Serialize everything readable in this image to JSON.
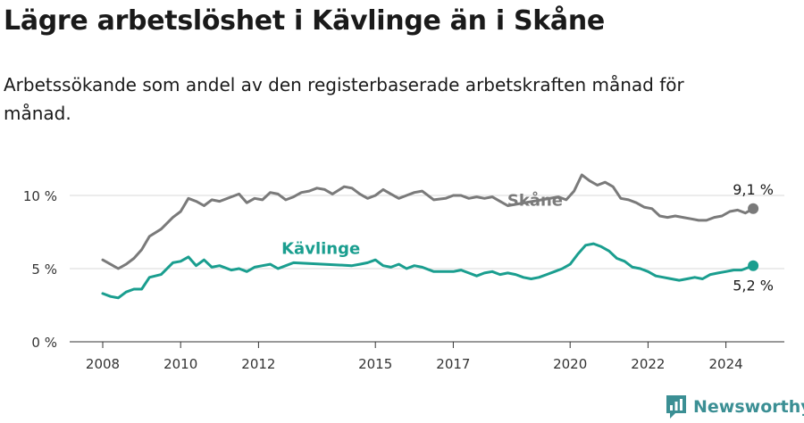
{
  "title": "Lägre arbetslöshet i Kävlinge än i Skåne",
  "subtitle": "Arbetssökande som andel av den registerbaserade arbetskraften månad för månad.",
  "brand": {
    "name": "Newsworthy",
    "color": "#3b8f94"
  },
  "chart_data": {
    "type": "line",
    "title": "Lägre arbetslöshet i Kävlinge än i Skåne",
    "xlabel": "",
    "ylabel": "",
    "xlim": [
      2007.3,
      2025.9
    ],
    "ylim": [
      0,
      12
    ],
    "grid": "horizontal",
    "y_ticks": [
      0,
      5,
      10
    ],
    "y_tick_labels": [
      "0 %",
      "5 %",
      "10 %"
    ],
    "x_ticks": [
      2008,
      2010,
      2012,
      2015,
      2017,
      2020,
      2022,
      2024
    ],
    "x_tick_labels": [
      "2008",
      "2010",
      "2012",
      "2015",
      "2017",
      "2020",
      "2022",
      "2024"
    ],
    "series": [
      {
        "name": "Skåne",
        "color": "#7a7a7a",
        "end_label": "9,1 %",
        "x": [
          2008.0,
          2008.2,
          2008.4,
          2008.6,
          2008.8,
          2009.0,
          2009.2,
          2009.5,
          2009.8,
          2010.0,
          2010.2,
          2010.4,
          2010.6,
          2010.8,
          2011.0,
          2011.3,
          2011.5,
          2011.7,
          2011.9,
          2012.1,
          2012.3,
          2012.5,
          2012.7,
          2012.9,
          2013.1,
          2013.3,
          2013.5,
          2013.7,
          2013.9,
          2014.2,
          2014.4,
          2014.6,
          2014.8,
          2015.0,
          2015.2,
          2015.4,
          2015.6,
          2015.8,
          2016.0,
          2016.2,
          2016.5,
          2016.8,
          2017.0,
          2017.2,
          2017.4,
          2017.6,
          2017.8,
          2018.0,
          2018.2,
          2018.4,
          2019.7,
          2019.9,
          2020.1,
          2020.3,
          2020.5,
          2020.7,
          2020.9,
          2021.1,
          2021.3,
          2021.5,
          2021.7,
          2021.9,
          2022.1,
          2022.3,
          2022.5,
          2022.7,
          2022.9,
          2023.1,
          2023.3,
          2023.5,
          2023.7,
          2023.9,
          2024.1,
          2024.3,
          2024.5,
          2024.7
        ],
        "y": [
          5.6,
          5.3,
          5.0,
          5.3,
          5.7,
          6.3,
          7.2,
          7.7,
          8.5,
          8.9,
          9.8,
          9.6,
          9.3,
          9.7,
          9.6,
          9.9,
          10.1,
          9.5,
          9.8,
          9.7,
          10.2,
          10.1,
          9.7,
          9.9,
          10.2,
          10.3,
          10.5,
          10.4,
          10.1,
          10.6,
          10.5,
          10.1,
          9.8,
          10.0,
          10.4,
          10.1,
          9.8,
          10.0,
          10.2,
          10.3,
          9.7,
          9.8,
          10.0,
          10.0,
          9.8,
          9.9,
          9.8,
          9.9,
          9.6,
          9.3,
          9.9,
          9.7,
          10.3,
          11.4,
          11.0,
          10.7,
          10.9,
          10.6,
          9.8,
          9.7,
          9.5,
          9.2,
          9.1,
          8.6,
          8.5,
          8.6,
          8.5,
          8.4,
          8.3,
          8.3,
          8.5,
          8.6,
          8.9,
          9.0,
          8.8,
          9.1
        ]
      },
      {
        "name": "Kävlinge",
        "color": "#1a9e8f",
        "end_label": "5,2 %",
        "x": [
          2008.0,
          2008.2,
          2008.4,
          2008.6,
          2008.8,
          2009.0,
          2009.2,
          2009.5,
          2009.8,
          2010.0,
          2010.2,
          2010.4,
          2010.6,
          2010.8,
          2011.0,
          2011.3,
          2011.5,
          2011.7,
          2011.9,
          2012.1,
          2012.3,
          2012.5,
          2012.7,
          2012.9,
          2014.4,
          2014.6,
          2014.8,
          2015.0,
          2015.2,
          2015.4,
          2015.6,
          2015.8,
          2016.0,
          2016.2,
          2016.5,
          2016.8,
          2017.0,
          2017.2,
          2017.4,
          2017.6,
          2017.8,
          2018.0,
          2018.2,
          2018.4,
          2018.6,
          2018.8,
          2019.0,
          2019.2,
          2019.4,
          2019.6,
          2019.8,
          2020.0,
          2020.2,
          2020.4,
          2020.6,
          2020.8,
          2021.0,
          2021.2,
          2021.4,
          2021.6,
          2021.8,
          2022.0,
          2022.2,
          2022.4,
          2022.6,
          2022.8,
          2023.0,
          2023.2,
          2023.4,
          2023.6,
          2023.8,
          2024.0,
          2024.2,
          2024.4,
          2024.6,
          2024.7
        ],
        "y": [
          3.3,
          3.1,
          3.0,
          3.4,
          3.6,
          3.6,
          4.4,
          4.6,
          5.4,
          5.5,
          5.8,
          5.2,
          5.6,
          5.1,
          5.2,
          4.9,
          5.0,
          4.8,
          5.1,
          5.2,
          5.3,
          5.0,
          5.2,
          5.4,
          5.2,
          5.3,
          5.4,
          5.6,
          5.2,
          5.1,
          5.3,
          5.0,
          5.2,
          5.1,
          4.8,
          4.8,
          4.8,
          4.9,
          4.7,
          4.5,
          4.7,
          4.8,
          4.6,
          4.7,
          4.6,
          4.4,
          4.3,
          4.4,
          4.6,
          4.8,
          5.0,
          5.3,
          6.0,
          6.6,
          6.7,
          6.5,
          6.2,
          5.7,
          5.5,
          5.1,
          5.0,
          4.8,
          4.5,
          4.4,
          4.3,
          4.2,
          4.3,
          4.4,
          4.3,
          4.6,
          4.7,
          4.8,
          4.9,
          4.9,
          5.1,
          5.2
        ]
      }
    ],
    "annotations": [
      {
        "text": "Skåne",
        "series": "Skåne",
        "x": 2019.1,
        "y": 9.3
      },
      {
        "text": "Kävlinge",
        "series": "Kävlinge",
        "x": 2013.6,
        "y": 6.0
      }
    ]
  }
}
